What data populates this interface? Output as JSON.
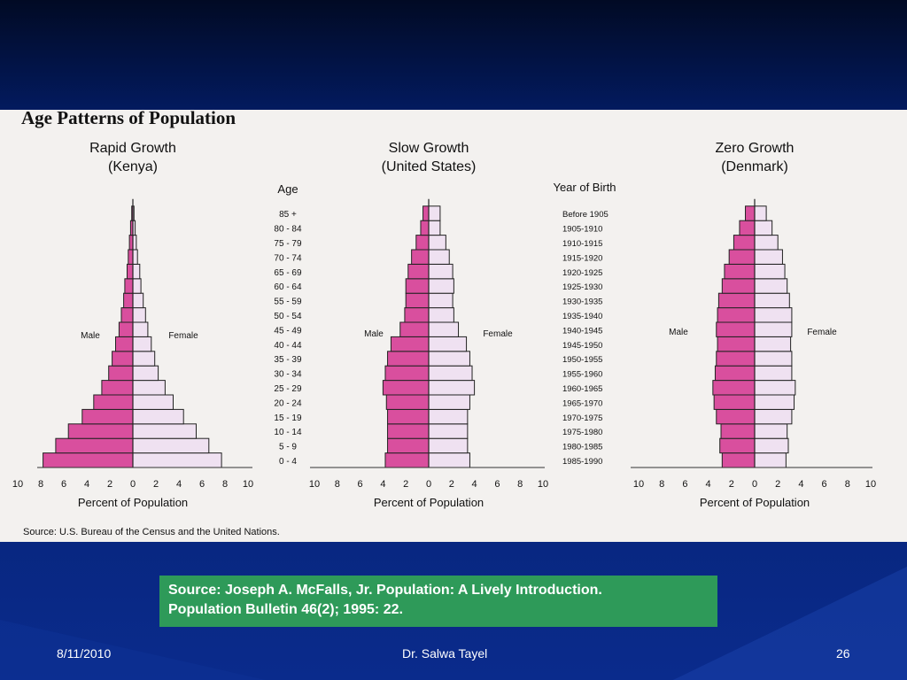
{
  "slide": {
    "date": "8/11/2010",
    "author": "Dr. Salwa Tayel",
    "page": "26",
    "source_box": [
      "Source: Joseph A. McFalls, Jr. Population: A Lively Introduction.",
      "Population Bulletin 46(2); 1995: 22."
    ]
  },
  "figure": {
    "title": "Age Patterns of Population",
    "source": "Source: U.S. Bureau of the Census and the United Nations.",
    "age_header": "Age",
    "birth_header": "Year of Birth"
  },
  "chart_data": [
    {
      "type": "bar",
      "title": "Rapid Growth",
      "subtitle": "(Kenya)",
      "xlabel": "Percent of Population",
      "series": [
        {
          "name": "Male"
        },
        {
          "name": "Female"
        }
      ],
      "xticks": [
        "10",
        "8",
        "6",
        "4",
        "2",
        "0",
        "2",
        "4",
        "6",
        "8",
        "10"
      ],
      "xlim": [
        -10,
        10
      ],
      "categories": [
        "0 - 4",
        "5 - 9",
        "10 - 14",
        "15 - 19",
        "20 - 24",
        "25 - 29",
        "30 - 34",
        "35 - 39",
        "40 - 44",
        "45 - 49",
        "50 - 54",
        "55 - 59",
        "60 - 64",
        "65 - 69",
        "70 - 74",
        "75 - 79",
        "80 - 84",
        "85 +"
      ],
      "male": [
        7.8,
        6.7,
        5.6,
        4.4,
        3.4,
        2.7,
        2.1,
        1.8,
        1.5,
        1.2,
        1.0,
        0.8,
        0.7,
        0.5,
        0.4,
        0.3,
        0.2,
        0.1
      ],
      "female": [
        7.7,
        6.6,
        5.5,
        4.4,
        3.5,
        2.8,
        2.2,
        1.9,
        1.6,
        1.3,
        1.1,
        0.9,
        0.7,
        0.6,
        0.4,
        0.3,
        0.2,
        0.1
      ]
    },
    {
      "type": "bar",
      "title": "Slow Growth",
      "subtitle": "(United States)",
      "xlabel": "Percent of Population",
      "series": [
        {
          "name": "Male"
        },
        {
          "name": "Female"
        }
      ],
      "xticks": [
        "10",
        "8",
        "6",
        "4",
        "2",
        "0",
        "2",
        "4",
        "6",
        "8",
        "10"
      ],
      "xlim": [
        -10,
        10
      ],
      "categories": [
        "0 - 4",
        "5 - 9",
        "10 - 14",
        "15 - 19",
        "20 - 24",
        "25 - 29",
        "30 - 34",
        "35 - 39",
        "40 - 44",
        "45 - 49",
        "50 - 54",
        "55 - 59",
        "60 - 64",
        "65 - 69",
        "70 - 74",
        "75 - 79",
        "80 - 84",
        "85 +"
      ],
      "male": [
        3.8,
        3.6,
        3.6,
        3.6,
        3.7,
        4.0,
        3.8,
        3.6,
        3.3,
        2.5,
        2.1,
        2.0,
        2.0,
        1.8,
        1.5,
        1.1,
        0.7,
        0.5
      ],
      "female": [
        3.6,
        3.4,
        3.4,
        3.4,
        3.6,
        4.0,
        3.8,
        3.6,
        3.3,
        2.6,
        2.2,
        2.1,
        2.2,
        2.1,
        1.8,
        1.5,
        1.0,
        1.0
      ]
    },
    {
      "type": "bar",
      "title": "Zero Growth",
      "subtitle": "(Denmark)",
      "xlabel": "Percent of Population",
      "series": [
        {
          "name": "Male"
        },
        {
          "name": "Female"
        }
      ],
      "xticks": [
        "10",
        "8",
        "6",
        "4",
        "2",
        "0",
        "2",
        "4",
        "6",
        "8",
        "10"
      ],
      "xlim": [
        -10,
        10
      ],
      "categories": [
        "1985-1990",
        "1980-1985",
        "1975-1980",
        "1970-1975",
        "1965-1970",
        "1960-1965",
        "1955-1960",
        "1950-1955",
        "1945-1950",
        "1940-1945",
        "1935-1940",
        "1930-1935",
        "1925-1930",
        "1920-1925",
        "1915-1920",
        "1910-1915",
        "1905-1910",
        "Before 1905"
      ],
      "male": [
        2.8,
        3.0,
        2.9,
        3.3,
        3.5,
        3.6,
        3.4,
        3.3,
        3.2,
        3.3,
        3.2,
        3.1,
        2.8,
        2.6,
        2.2,
        1.8,
        1.3,
        0.8
      ],
      "female": [
        2.7,
        2.9,
        2.8,
        3.2,
        3.4,
        3.5,
        3.2,
        3.2,
        3.1,
        3.2,
        3.2,
        3.0,
        2.8,
        2.6,
        2.4,
        2.0,
        1.5,
        1.0
      ]
    }
  ],
  "colors": {
    "male": "#d94f9e",
    "female": "#efe1f1",
    "text": "#111111",
    "background": "#f3f1ef"
  }
}
